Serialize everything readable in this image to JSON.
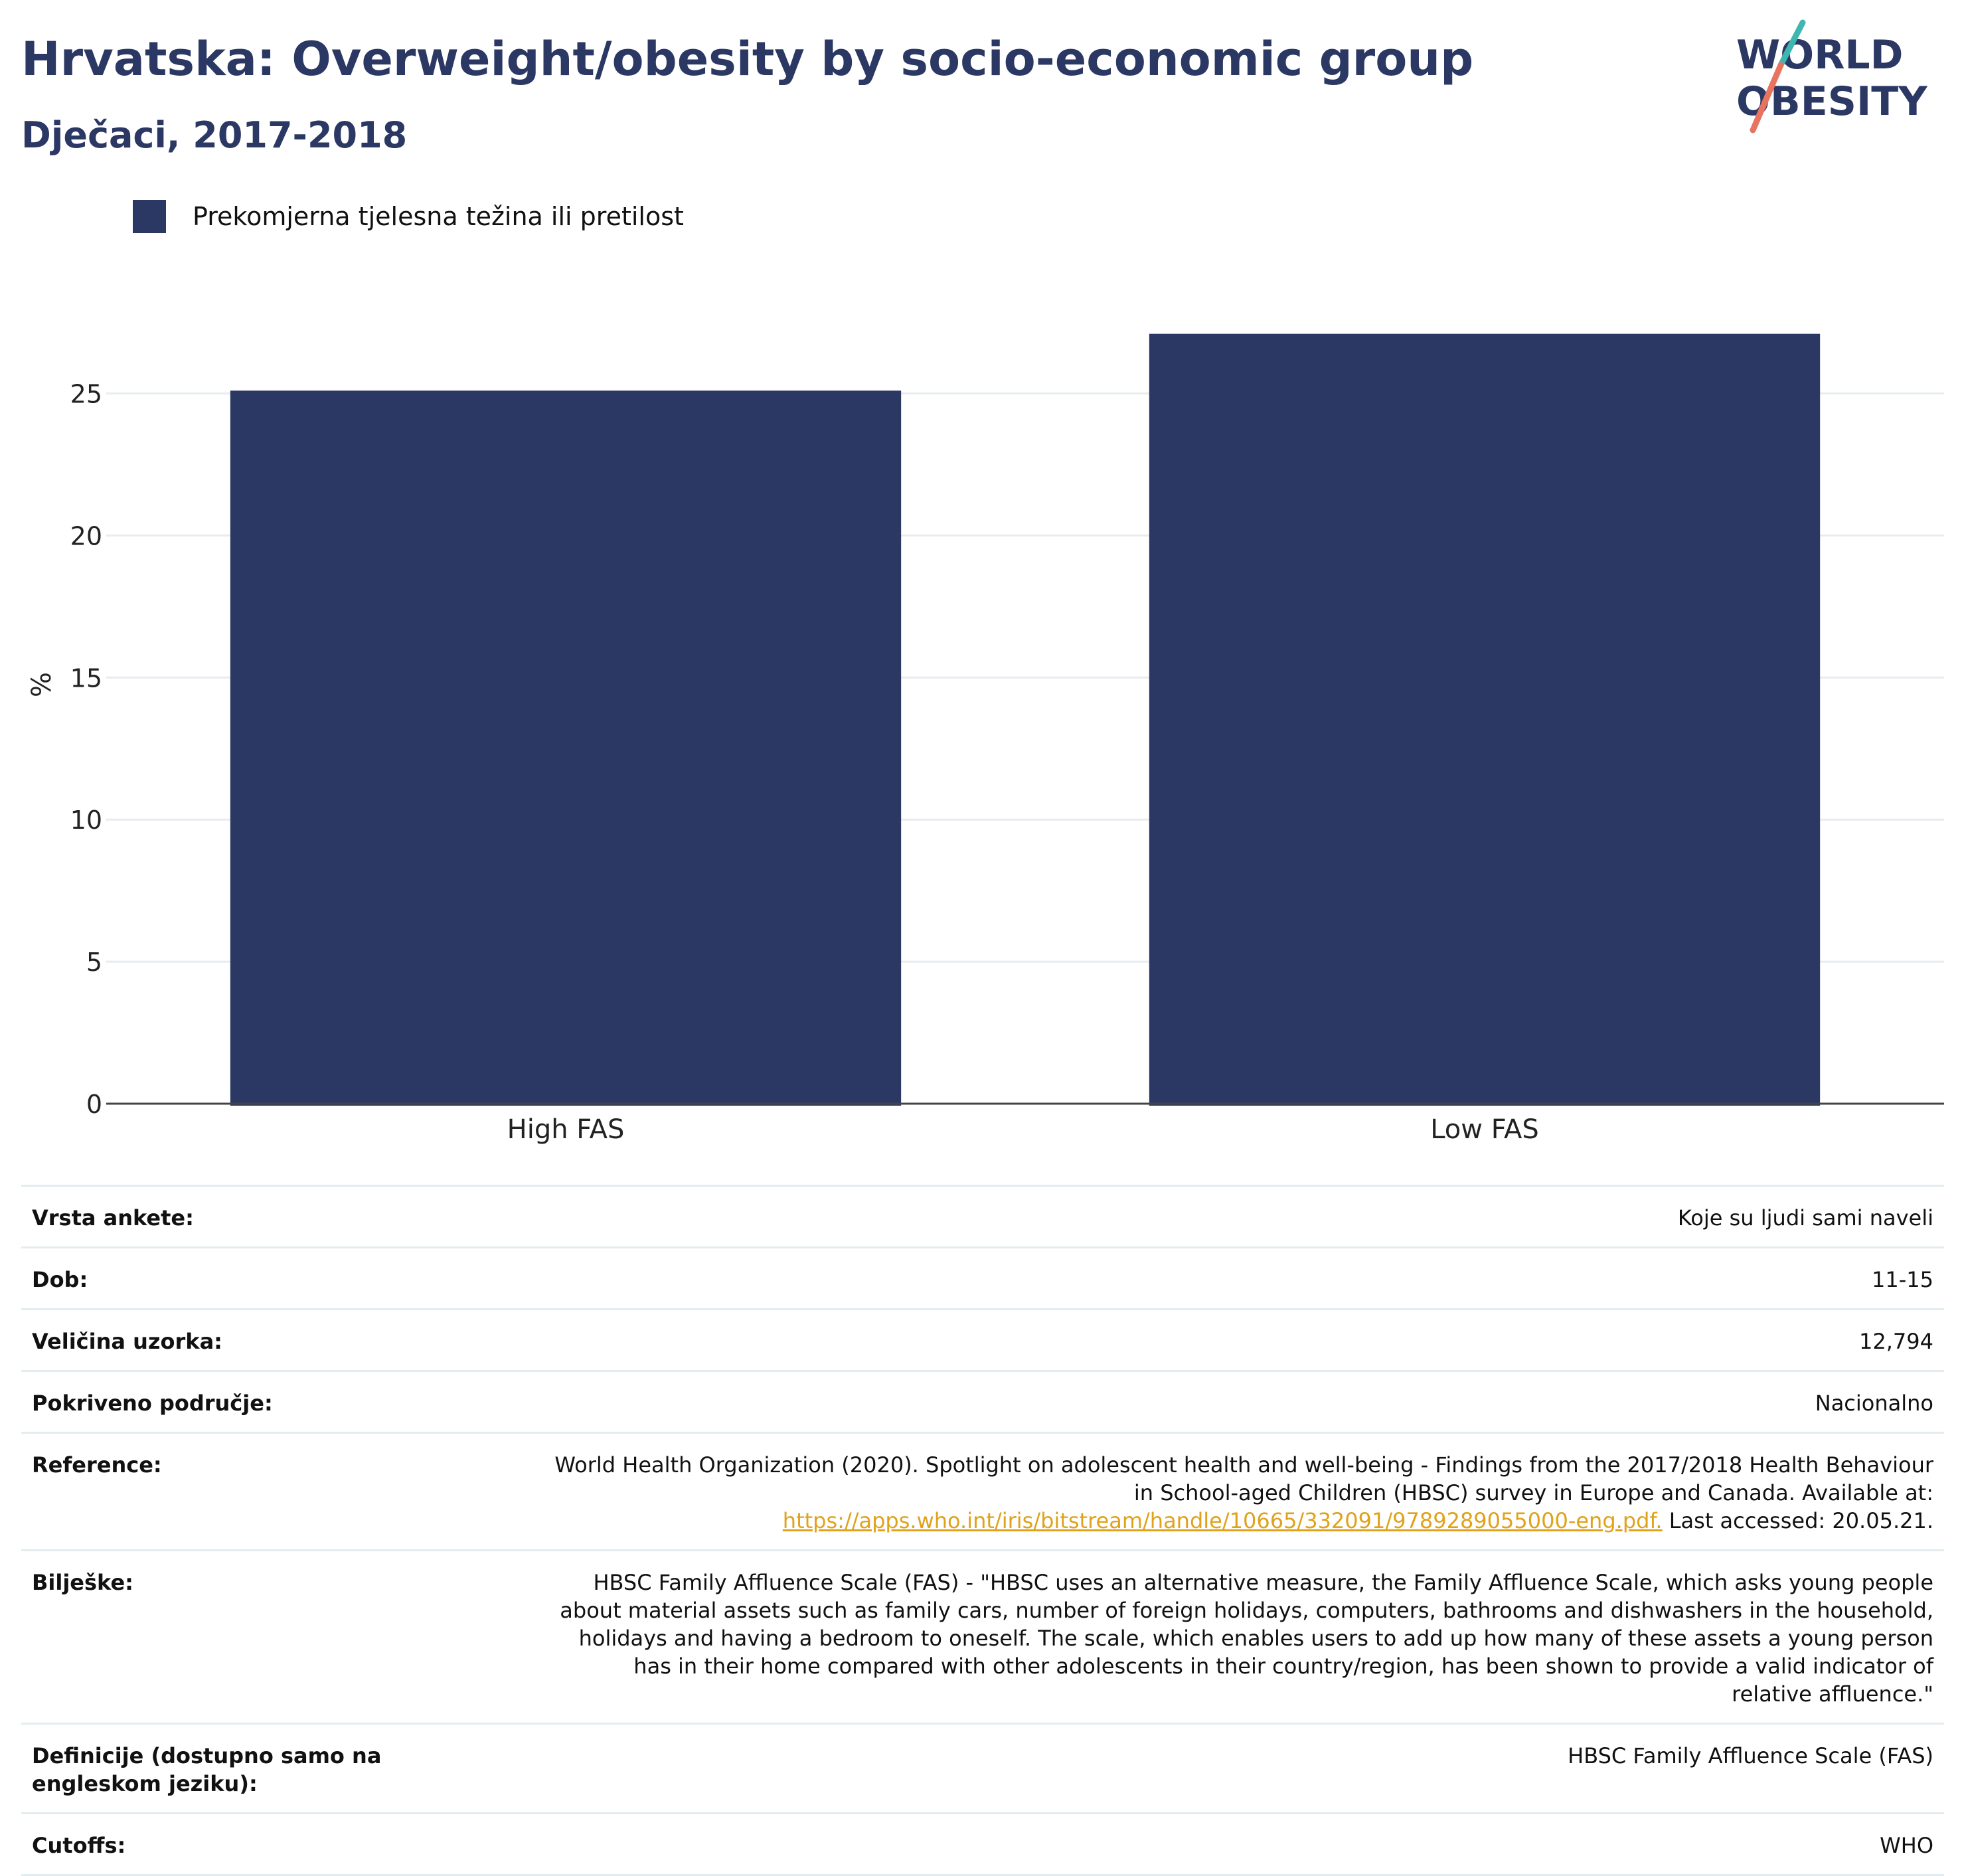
{
  "header": {
    "title": "Hrvatska: Overweight/obesity by socio-economic group",
    "subtitle": "Dječaci, 2017-2018"
  },
  "logo": {
    "line1": "WORLD",
    "line2": "OBESITY"
  },
  "legend": {
    "label": "Prekomjerna tjelesna težina ili pretilost",
    "color": "#2b3864"
  },
  "chart_data": {
    "type": "bar",
    "categories": [
      "High FAS",
      "Low FAS"
    ],
    "series": [
      {
        "name": "Prekomjerna tjelesna težina ili pretilost",
        "values": [
          25.1,
          27.1
        ],
        "color": "#2b3864"
      }
    ],
    "ylabel": "%",
    "xlabel": "",
    "ylim": [
      0,
      29.5
    ],
    "yticks": [
      0,
      5,
      10,
      15,
      20,
      25
    ],
    "grid": true,
    "legend_position": "top-left"
  },
  "meta": {
    "rows": [
      {
        "label": "Vrsta ankete:",
        "value": "Koje su ljudi sami naveli"
      },
      {
        "label": "Dob:",
        "value": "11-15"
      },
      {
        "label": "Veličina uzorka:",
        "value": "12,794"
      },
      {
        "label": "Pokriveno područje:",
        "value": "Nacionalno"
      },
      {
        "label": "Reference:",
        "value": "World Health Organization (2020). Spotlight on adolescent health and well-being - Findings from the 2017/2018 Health Behaviour in School-aged Children (HBSC) survey in Europe and Canada. Available at:",
        "link": "https://apps.who.int/iris/bitstream/handle/10665/332091/9789289055000-eng.pdf.",
        "suffix": " Last accessed: 20.05.21."
      },
      {
        "label": "Bilješke:",
        "value": "HBSC Family Affluence Scale (FAS) - \"HBSC uses an alternative measure, the Family Affluence Scale, which asks young people about material assets such as family cars, number of foreign holidays, computers, bathrooms and dishwashers in the household, holidays and having a bedroom to oneself. The scale, which enables users to add up how many of these assets a young person has in their home compared with other adolescents in their country/region, has been shown to provide a valid indicator of relative affluence.\""
      },
      {
        "label": "Definicije (dostupno samo na engleskom jeziku):",
        "value": "HBSC Family Affluence Scale (FAS)"
      },
      {
        "label": "Cutoffs:",
        "value": "WHO"
      }
    ]
  }
}
